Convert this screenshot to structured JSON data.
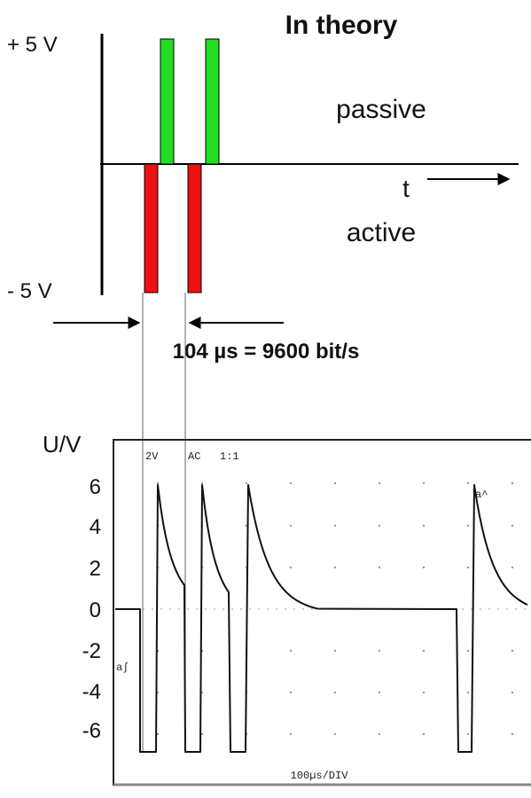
{
  "theory": {
    "title": "In theory",
    "plus_label": "+ 5 V",
    "minus_label": "- 5 V",
    "passive_label": "passive",
    "active_label": "active",
    "time_label": "t",
    "timing_label": "104 µs = 9600 bit/s",
    "colors": {
      "positive_pulse": "#22dd22",
      "negative_pulse": "#ee1111"
    }
  },
  "scope": {
    "y_axis_label": "U/V",
    "y_ticks": [
      "6",
      "4",
      "2",
      "0",
      "-2",
      "-4",
      "-6"
    ],
    "volts_div_label": "2V",
    "coupling_label": "AC",
    "probe_label": "1:1",
    "timebase_label": "100µs/DIV",
    "channel_marker": "a∫",
    "trace_marker": "a^"
  }
}
